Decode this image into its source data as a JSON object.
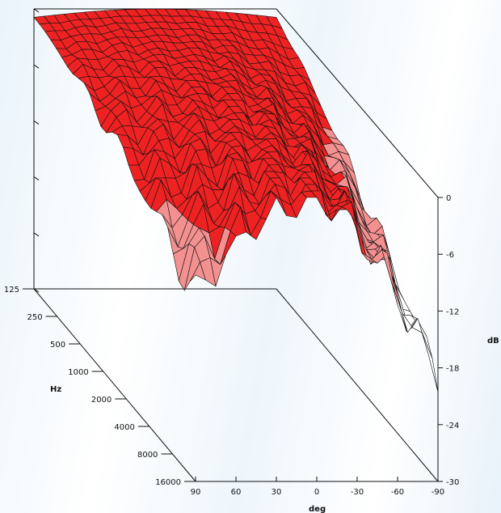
{
  "chart_data": {
    "type": "surface",
    "x": {
      "label": "deg",
      "ticks": [
        "90",
        "60",
        "30",
        "0",
        "-30",
        "-60",
        "-90"
      ],
      "range": [
        90,
        -90
      ]
    },
    "y": {
      "label": "Hz",
      "ticks": [
        "125",
        "250",
        "500",
        "1000",
        "2000",
        "4000",
        "8000",
        "16000"
      ],
      "scale": "log"
    },
    "z": {
      "label": "dB",
      "ticks": [
        "0",
        "-6",
        "-12",
        "-18",
        "-24",
        "-30"
      ],
      "range": [
        -30,
        0
      ]
    },
    "color_bands": [
      {
        "range_db": [
          -6,
          0
        ],
        "color": "#ee2222"
      },
      {
        "range_db": [
          -12,
          -6
        ],
        "color": "#f39090"
      },
      {
        "range_db": [
          -30,
          -12
        ],
        "color": "#ffffff"
      }
    ]
  }
}
